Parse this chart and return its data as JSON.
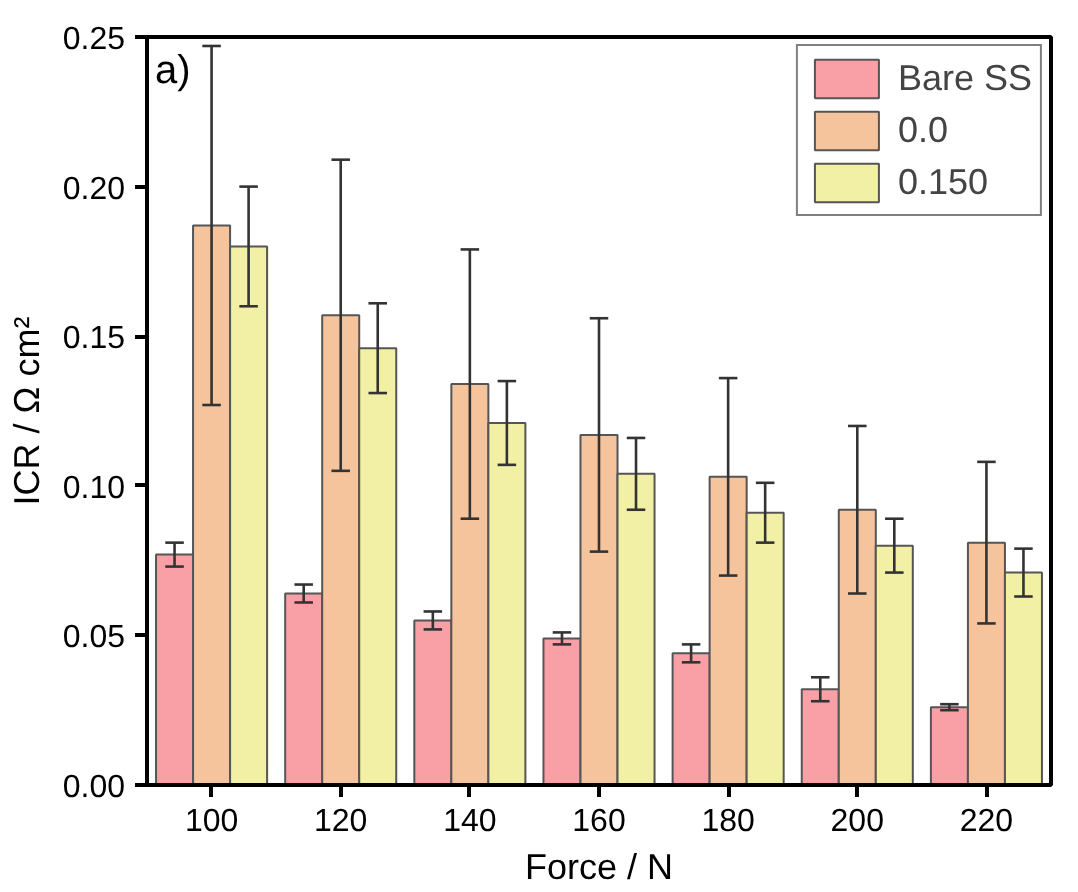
{
  "chart_data": {
    "type": "bar",
    "xlabel": "Force / N",
    "ylabel": "ICR / Ω cm²",
    "annotations": [
      "a)"
    ],
    "categories": [
      "100",
      "120",
      "140",
      "160",
      "180",
      "200",
      "220"
    ],
    "series": [
      {
        "name": "Bare SS",
        "color": "#f9a0a6",
        "values": [
          0.077,
          0.064,
          0.055,
          0.049,
          0.044,
          0.032,
          0.026
        ],
        "errors": [
          0.004,
          0.003,
          0.003,
          0.002,
          0.003,
          0.004,
          0.001
        ]
      },
      {
        "name": "0.0",
        "color": "#f6c49c",
        "values": [
          0.187,
          0.157,
          0.134,
          0.117,
          0.103,
          0.092,
          0.081
        ],
        "errors": [
          0.06,
          0.052,
          0.045,
          0.039,
          0.033,
          0.028,
          0.027
        ]
      },
      {
        "name": "0.150",
        "color": "#f2f0a4",
        "values": [
          0.18,
          0.146,
          0.121,
          0.104,
          0.091,
          0.08,
          0.071
        ],
        "errors": [
          0.02,
          0.015,
          0.014,
          0.012,
          0.01,
          0.009,
          0.008
        ]
      }
    ],
    "ylim": [
      0,
      0.25
    ],
    "yticks": [
      {
        "value": 0,
        "label": "0.00"
      },
      {
        "value": 0.05,
        "label": "0.05"
      },
      {
        "value": 0.1,
        "label": "0.10"
      },
      {
        "value": 0.15,
        "label": "0.15"
      },
      {
        "value": 0.2,
        "label": "0.20"
      },
      {
        "value": 0.25,
        "label": "0.25"
      }
    ],
    "grid": false,
    "legend": "top right"
  }
}
